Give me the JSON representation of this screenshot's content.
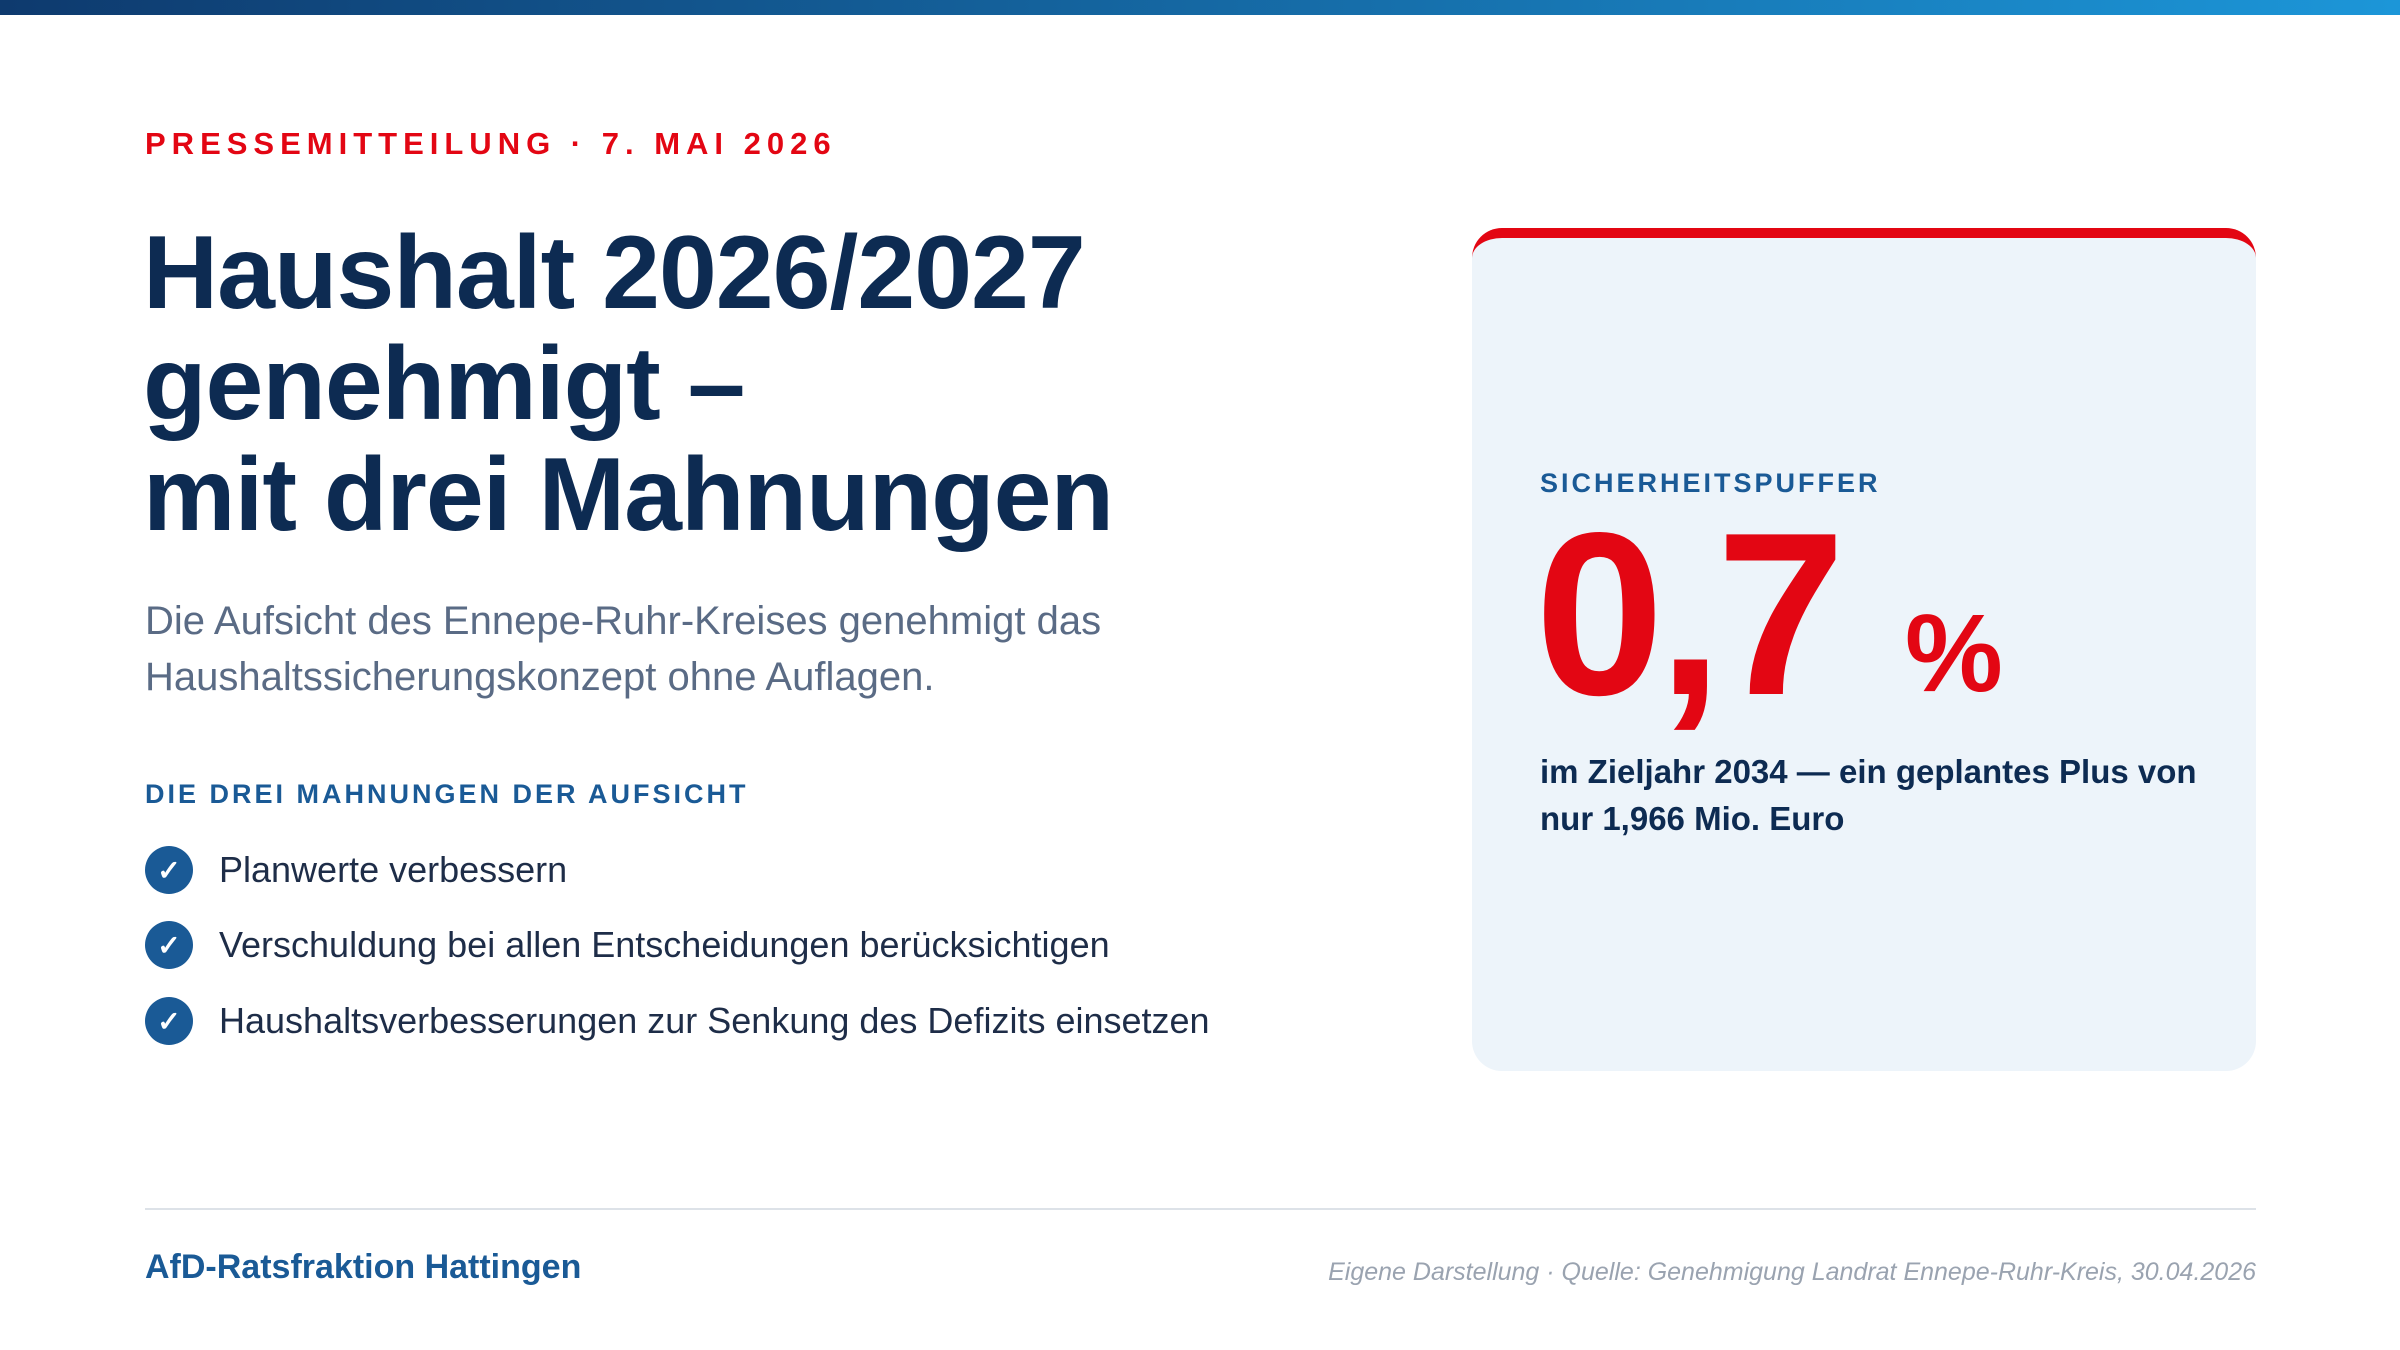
{
  "header": {
    "kicker": "PRESSEMITTEILUNG · 7. MAI 2026",
    "title": [
      "Haushalt 2026/2027",
      "genehmigt –",
      "mit drei Mahnungen"
    ],
    "subtitle": [
      "Die Aufsicht des Ennepe-Ruhr-Kreises genehmigt das",
      "Haushaltssicherungskonzept ohne Auflagen."
    ]
  },
  "list": {
    "heading": "DIE DREI MAHNUNGEN DER AUFSICHT",
    "items": [
      "Planwerte verbessern",
      "Verschuldung bei allen Entscheidungen berücksichtigen",
      "Haushaltsverbesserungen zur Senkung des Defizits einsetzen"
    ]
  },
  "card": {
    "label": "SICHERHEITSPUFFER",
    "value": "0,7",
    "unit": "%",
    "description": [
      "im Zieljahr 2034 — ein geplantes Plus von",
      "nur 1,966 Mio. Euro"
    ]
  },
  "footer": {
    "organization": "AfD-Ratsfraktion Hattingen",
    "source": "Eigene Darstellung · Quelle: Genehmigung Landrat Ennepe-Ruhr-Kreis, 30.04.2026"
  }
}
